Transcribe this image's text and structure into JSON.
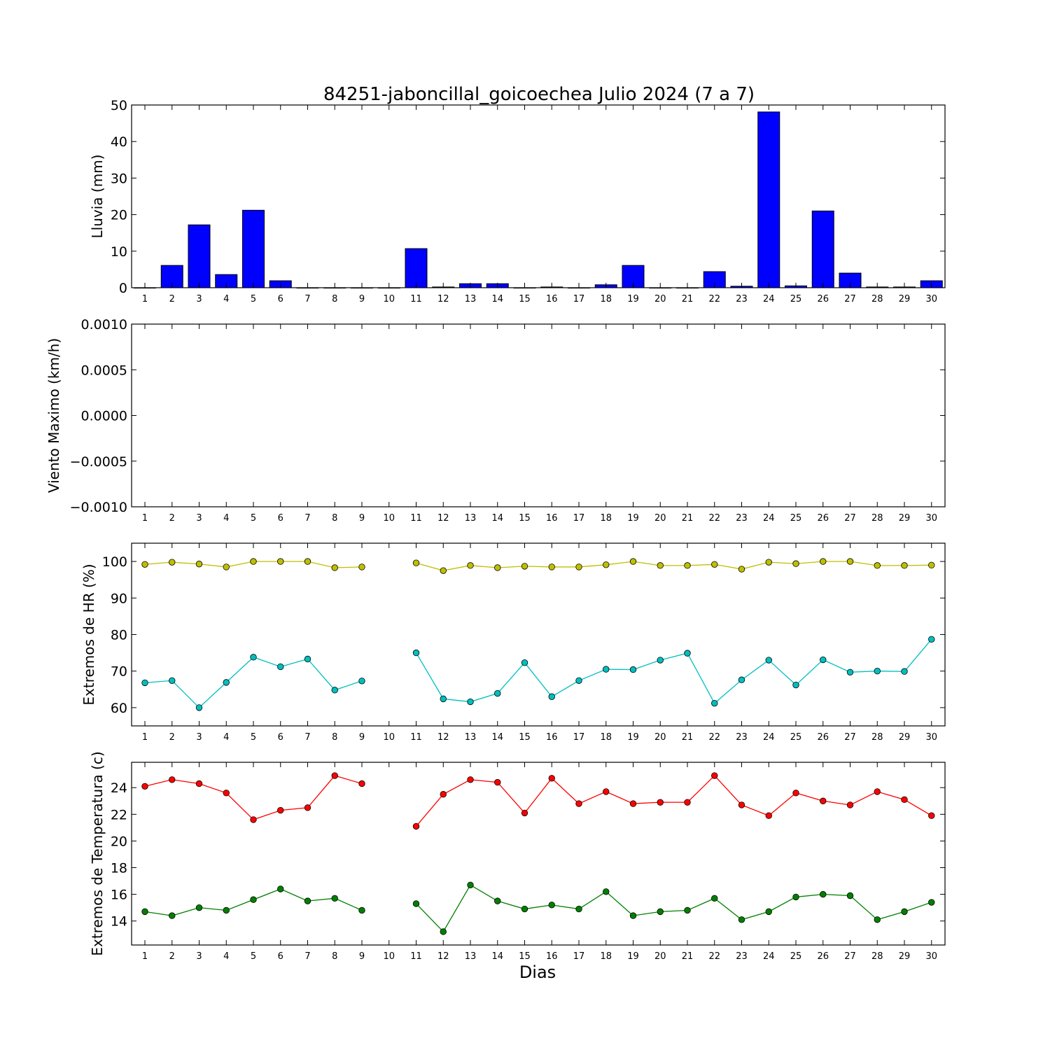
{
  "figure": {
    "title": "84251-jaboncillal_goicoechea Julio 2024  (7 a 7)",
    "xlabel": "Dias"
  },
  "colors": {
    "rain_bar": "#0000ff",
    "hr_max": "#bfbf00",
    "hr_min": "#00bfbf",
    "temp_max": "#ff0000",
    "temp_min": "#008000"
  },
  "chart_data": [
    {
      "id": "rain",
      "type": "bar",
      "ylabel": "Lluvia (mm)",
      "ylim": [
        0,
        50
      ],
      "yticks": [
        0,
        10,
        20,
        30,
        40,
        50
      ],
      "ytick_labels": [
        "0",
        "10",
        "20",
        "30",
        "40",
        "50"
      ],
      "categories": [
        1,
        2,
        3,
        4,
        5,
        6,
        7,
        8,
        9,
        10,
        11,
        12,
        13,
        14,
        15,
        16,
        17,
        18,
        19,
        20,
        21,
        22,
        23,
        24,
        25,
        26,
        27,
        28,
        29,
        30
      ],
      "values": [
        0,
        6.1,
        17.2,
        3.6,
        21.2,
        1.9,
        0,
        0,
        0,
        0,
        10.7,
        0.2,
        1.1,
        1.1,
        0,
        0.2,
        0,
        0.8,
        6.1,
        0,
        0,
        4.4,
        0.4,
        48.1,
        0.5,
        21.0,
        4.0,
        0.2,
        0.2,
        1.9
      ],
      "grid": false
    },
    {
      "id": "wind",
      "type": "line",
      "ylabel": "Viento Maximo (km/h)",
      "ylim": [
        -0.001,
        0.001
      ],
      "yticks": [
        -0.001,
        -0.0005,
        0,
        0.0005,
        0.001
      ],
      "ytick_labels": [
        "−0.0010",
        "−0.0005",
        "0.0000",
        "0.0005",
        "0.0010"
      ],
      "categories": [
        1,
        2,
        3,
        4,
        5,
        6,
        7,
        8,
        9,
        10,
        11,
        12,
        13,
        14,
        15,
        16,
        17,
        18,
        19,
        20,
        21,
        22,
        23,
        24,
        25,
        26,
        27,
        28,
        29,
        30
      ],
      "series": [],
      "grid": false
    },
    {
      "id": "hr",
      "type": "line",
      "ylabel": "Extremos de HR (%)",
      "ylim": [
        55,
        105
      ],
      "yticks": [
        60,
        70,
        80,
        90,
        100
      ],
      "ytick_labels": [
        "60",
        "70",
        "80",
        "90",
        "100"
      ],
      "categories": [
        1,
        2,
        3,
        4,
        5,
        6,
        7,
        8,
        9,
        10,
        11,
        12,
        13,
        14,
        15,
        16,
        17,
        18,
        19,
        20,
        21,
        22,
        23,
        24,
        25,
        26,
        27,
        28,
        29,
        30
      ],
      "series": [
        {
          "color_key": "hr_max",
          "values": [
            99.2,
            99.8,
            99.3,
            98.5,
            100,
            100,
            100,
            98.3,
            98.5,
            null,
            99.6,
            97.5,
            98.9,
            98.3,
            98.7,
            98.5,
            98.5,
            99.1,
            100,
            98.9,
            98.9,
            99.2,
            97.9,
            99.8,
            99.4,
            100,
            100,
            98.9,
            98.9,
            99.0
          ]
        },
        {
          "color_key": "hr_min",
          "values": [
            66.8,
            67.4,
            60.0,
            66.9,
            73.8,
            71.2,
            73.3,
            64.8,
            67.3,
            null,
            75.0,
            62.4,
            61.6,
            63.9,
            72.3,
            63.0,
            67.4,
            70.5,
            70.4,
            73.0,
            74.9,
            61.2,
            67.6,
            73.0,
            66.2,
            73.1,
            69.7,
            70.0,
            69.9,
            78.7
          ]
        }
      ],
      "grid": false
    },
    {
      "id": "temp",
      "type": "line",
      "ylabel": "Extremos de Temperatura (c)",
      "ylim": [
        12.2,
        25.9
      ],
      "yticks": [
        14,
        16,
        18,
        20,
        22,
        24
      ],
      "ytick_labels": [
        "14",
        "16",
        "18",
        "20",
        "22",
        "24"
      ],
      "categories": [
        1,
        2,
        3,
        4,
        5,
        6,
        7,
        8,
        9,
        10,
        11,
        12,
        13,
        14,
        15,
        16,
        17,
        18,
        19,
        20,
        21,
        22,
        23,
        24,
        25,
        26,
        27,
        28,
        29,
        30
      ],
      "series": [
        {
          "color_key": "temp_max",
          "values": [
            24.1,
            24.6,
            24.3,
            23.6,
            21.6,
            22.3,
            22.5,
            24.9,
            24.3,
            null,
            21.1,
            23.5,
            24.6,
            24.4,
            22.1,
            24.7,
            22.8,
            23.7,
            22.8,
            22.9,
            22.9,
            24.9,
            22.7,
            21.9,
            23.6,
            23.0,
            22.7,
            23.7,
            23.1,
            21.9
          ]
        },
        {
          "color_key": "temp_min",
          "values": [
            14.7,
            14.4,
            15.0,
            14.8,
            15.6,
            16.4,
            15.5,
            15.7,
            14.8,
            null,
            15.3,
            13.2,
            16.7,
            15.5,
            14.9,
            15.2,
            14.9,
            16.2,
            14.4,
            14.7,
            14.8,
            15.7,
            14.1,
            14.7,
            15.8,
            16.0,
            15.9,
            14.1,
            14.7,
            15.4
          ]
        }
      ],
      "grid": false
    }
  ]
}
